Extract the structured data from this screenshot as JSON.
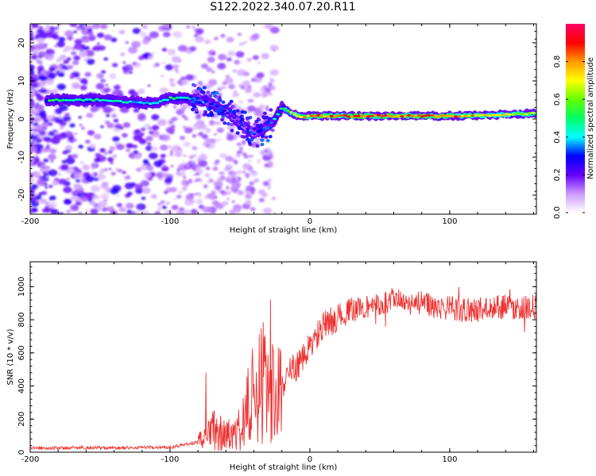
{
  "title": "S122.2022.340.07.20.R11",
  "chart_data": [
    {
      "type": "heatmap",
      "title": "S122.2022.340.07.20.R11",
      "xlabel": "Height of straight line (km)",
      "ylabel": "Frequency (Hz)",
      "xlim": [
        -200,
        162
      ],
      "ylim": [
        -25,
        25
      ],
      "xticks": [
        -200,
        -100,
        0,
        100
      ],
      "yticks": [
        -20,
        -10,
        0,
        10,
        20
      ],
      "colorbar": {
        "label": "Normalized spectral amplitude",
        "range": [
          0,
          1
        ],
        "ticks": [
          0.0,
          0.2,
          0.4,
          0.6,
          0.8
        ],
        "colormap": [
          "#ffffff",
          "#cc99ff",
          "#6600ff",
          "#0000ff",
          "#00ffff",
          "#00ff66",
          "#66ff00",
          "#ffff00",
          "#ff9900",
          "#ff0000",
          "#ff0066"
        ]
      },
      "ridge": {
        "description_points_x": [
          -185,
          -170,
          -150,
          -130,
          -110,
          -100,
          -90,
          -80,
          -70,
          -60,
          -50,
          -40,
          -30,
          -25,
          -20,
          -15,
          -10,
          -5,
          0,
          50,
          100,
          130,
          162
        ],
        "frequency_y": [
          5,
          5,
          5,
          4.5,
          4,
          5.5,
          5.5,
          5,
          4,
          2,
          -1,
          -4,
          -2,
          0,
          3,
          2,
          1,
          0.5,
          0.8,
          0.8,
          0.8,
          1,
          1.5
        ],
        "amplitude": [
          0.55,
          0.5,
          0.5,
          0.45,
          0.4,
          0.55,
          0.5,
          0.45,
          0.35,
          0.3,
          0.25,
          0.25,
          0.35,
          0.45,
          0.55,
          0.65,
          0.75,
          0.8,
          0.9,
          0.95,
          0.92,
          0.75,
          0.7
        ]
      }
    },
    {
      "type": "line",
      "xlabel": "Height of straight line (km)",
      "ylabel": "SNR (10 * v/v)",
      "xlim": [
        -200,
        162
      ],
      "ylim": [
        0,
        1150
      ],
      "xticks": [
        -200,
        -100,
        0,
        100
      ],
      "yticks": [
        0,
        200,
        400,
        600,
        800,
        1000
      ],
      "color": "#ee3333",
      "series": [
        {
          "x": [
            -200,
            -180,
            -160,
            -140,
            -120,
            -100,
            -90,
            -80,
            -75,
            -70,
            -65,
            -60,
            -55,
            -50,
            -45,
            -40,
            -35,
            -30,
            -25,
            -20,
            -15,
            -10,
            -5,
            0,
            10,
            20,
            30,
            40,
            50,
            60,
            70,
            80,
            90,
            100,
            110,
            120,
            130,
            140,
            150,
            162
          ],
          "y": [
            25,
            25,
            28,
            25,
            28,
            30,
            45,
            60,
            80,
            150,
            130,
            90,
            120,
            150,
            250,
            350,
            400,
            430,
            470,
            400,
            480,
            520,
            560,
            640,
            760,
            820,
            860,
            880,
            890,
            920,
            900,
            900,
            880,
            870,
            860,
            860,
            870,
            880,
            870,
            880
          ]
        }
      ]
    }
  ]
}
